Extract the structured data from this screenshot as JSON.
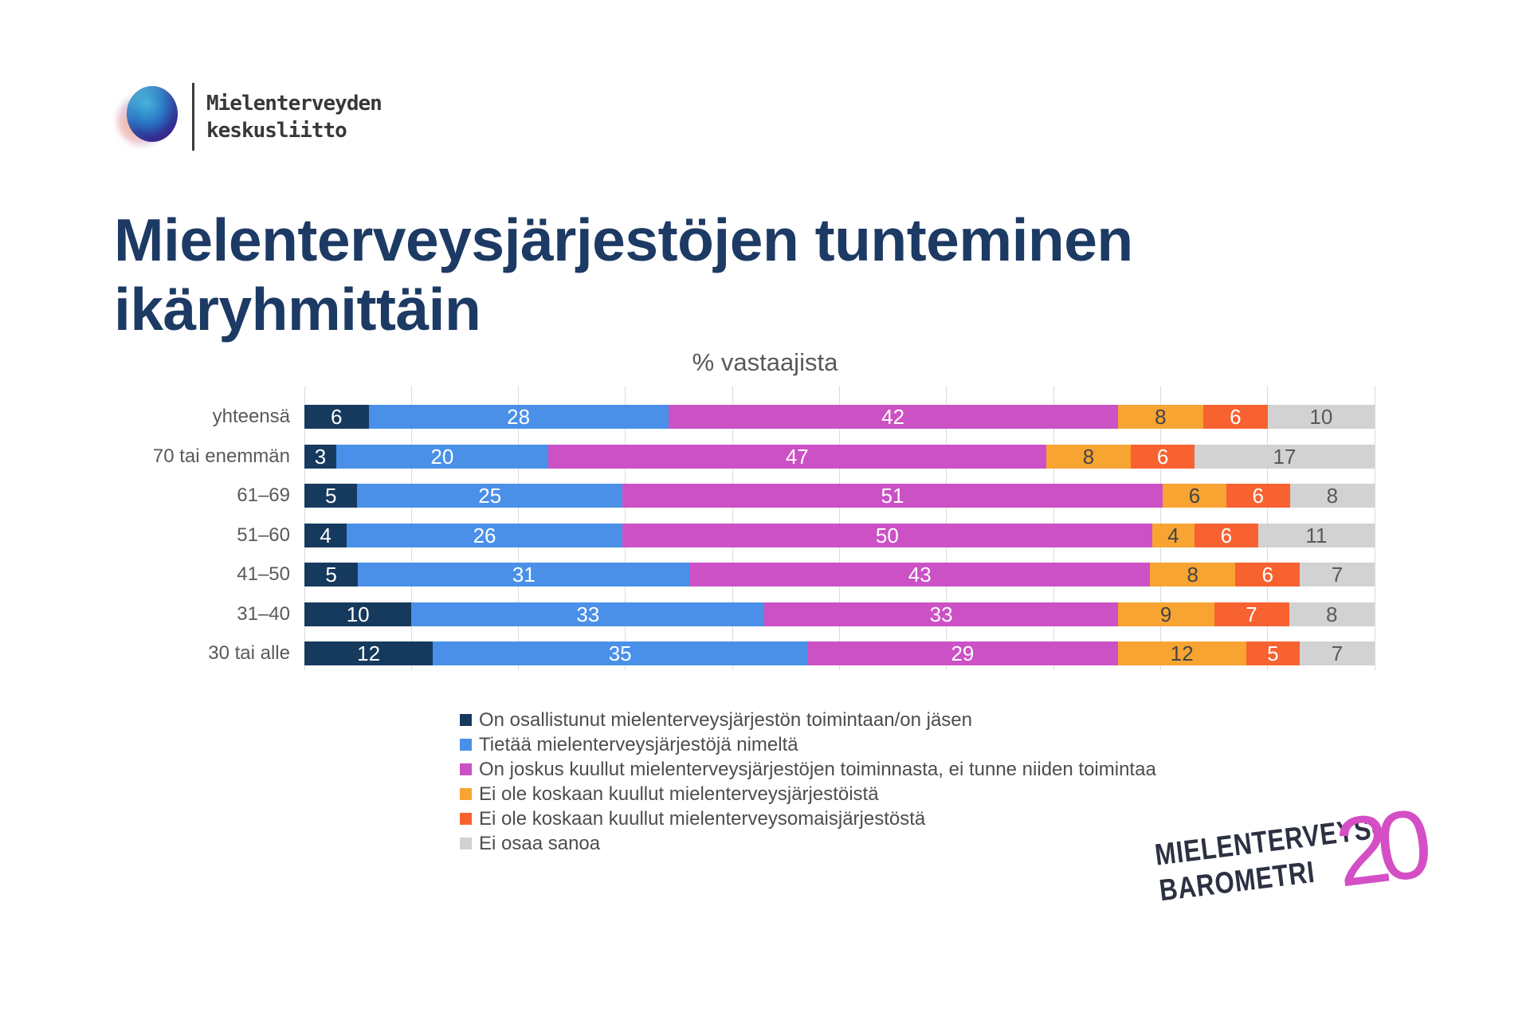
{
  "header": {
    "logo_line1": "Mielenterveyden",
    "logo_line2": "keskusliitto"
  },
  "title": "Mielenterveysjärjestöjen tunteminen ikäryhmittäin",
  "chart_data": {
    "type": "bar",
    "stacked": true,
    "orientation": "horizontal",
    "title": "% vastaajista",
    "xlim": [
      0,
      100
    ],
    "gridlines_every": 10,
    "grid": true,
    "legend_position": "bottom",
    "categories": [
      "yhteensä",
      "70 tai enemmän",
      "61–69",
      "51–60",
      "41–50",
      "31–40",
      "30 tai alle"
    ],
    "series": [
      {
        "name": "On osallistunut mielenterveysjärjestön toimintaan/on jäsen",
        "color": "#163a5e",
        "label_color": "#ffffff",
        "values": [
          6,
          3,
          5,
          4,
          5,
          10,
          12
        ]
      },
      {
        "name": "Tietää mielenterveysjärjestöjä nimeltä",
        "color": "#4a90e8",
        "label_color": "#ffffff",
        "values": [
          28,
          20,
          25,
          26,
          31,
          33,
          35
        ]
      },
      {
        "name": "On joskus kuullut mielenterveysjärjestöjen toiminnasta, ei tunne niiden toimintaa",
        "color": "#cb51c5",
        "label_color": "#ffffff",
        "values": [
          42,
          47,
          51,
          50,
          43,
          33,
          29
        ]
      },
      {
        "name": "Ei ole koskaan kuullut mielenterveysjärjestöistä",
        "color": "#f7a433",
        "label_color": "#454545",
        "values": [
          8,
          8,
          6,
          4,
          8,
          9,
          12
        ]
      },
      {
        "name": "Ei ole koskaan kuullut mielenterveysomaisjärjestöstä",
        "color": "#f76230",
        "label_color": "#ffffff",
        "values": [
          6,
          6,
          6,
          6,
          6,
          7,
          5
        ]
      },
      {
        "name": "Ei osaa sanoa",
        "color": "#d2d2d2",
        "label_color": "#595959",
        "values": [
          10,
          17,
          8,
          11,
          7,
          8,
          7
        ]
      }
    ]
  },
  "footer_logo": {
    "line1": "MIELENTERVEYS-",
    "line2": "BAROMETRI",
    "number": "20",
    "accent_color": "#d44fc5"
  }
}
